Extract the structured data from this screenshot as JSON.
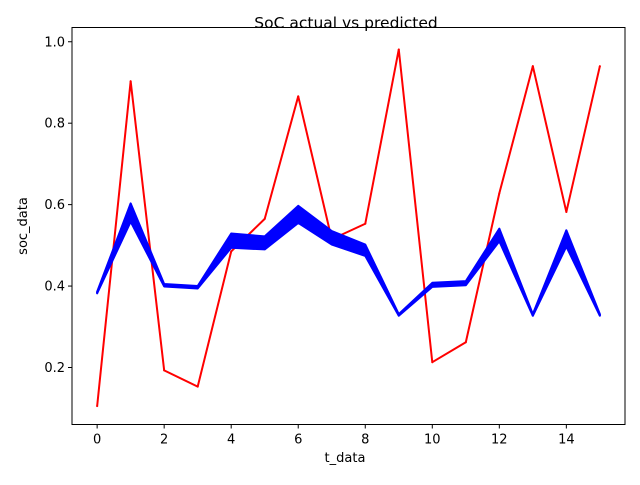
{
  "chart_data": {
    "type": "line",
    "title": "SoC actual vs predicted",
    "xlabel": "t_data",
    "ylabel": "soc_data",
    "xlim": [
      -0.75,
      15.75
    ],
    "ylim": [
      0.06,
      1.035
    ],
    "grid": false,
    "xticks": [
      0,
      2,
      4,
      6,
      8,
      10,
      12,
      14
    ],
    "yticks": [
      0.2,
      0.4,
      0.6,
      0.8,
      1.0
    ],
    "xtick_labels": [
      "0",
      "2",
      "4",
      "6",
      "8",
      "10",
      "12",
      "14"
    ],
    "ytick_labels": [
      "0.2",
      "0.4",
      "0.6",
      "0.8",
      "1.0"
    ],
    "x": [
      0,
      1,
      2,
      3,
      4,
      5,
      6,
      7,
      8,
      9,
      10,
      11,
      12,
      13,
      14,
      15
    ],
    "series": [
      {
        "color": "#ff0000",
        "band": false,
        "values": [
          0.105,
          0.903,
          0.193,
          0.153,
          0.485,
          0.565,
          0.866,
          0.515,
          0.553,
          0.981,
          0.213,
          0.262,
          0.628,
          0.94,
          0.582,
          0.94
        ]
      },
      {
        "color": "#0000ff",
        "band": true,
        "upper": [
          0.386,
          0.603,
          0.405,
          0.4,
          0.529,
          0.522,
          0.597,
          0.535,
          0.502,
          0.331,
          0.408,
          0.412,
          0.541,
          0.331,
          0.537,
          0.331
        ],
        "lower": [
          0.382,
          0.558,
          0.399,
          0.394,
          0.494,
          0.49,
          0.555,
          0.502,
          0.474,
          0.327,
          0.398,
          0.402,
          0.51,
          0.327,
          0.497,
          0.327
        ]
      }
    ]
  }
}
